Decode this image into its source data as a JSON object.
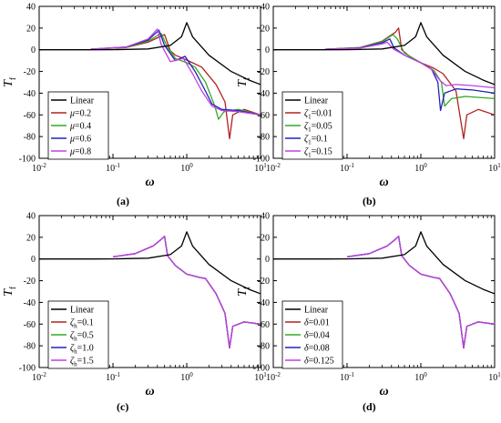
{
  "figure": {
    "panel_captions": [
      "(a)",
      "(b)",
      "(c)",
      "(d)"
    ]
  },
  "colors": {
    "linear": "#000000",
    "red": "#b22222",
    "green": "#33aa22",
    "blue": "#2020c0",
    "magenta": "#c040e0"
  },
  "chart_data": [
    {
      "type": "line",
      "panel": "(a)",
      "xlabel": "ω",
      "ylabel": "T_f",
      "xscale": "log",
      "xlim": [
        0.01,
        10
      ],
      "ylim": [
        -100,
        40
      ],
      "xticks": [
        "10^-2",
        "10^-1",
        "10^0",
        "10^1"
      ],
      "yticks": [
        40,
        20,
        0,
        -20,
        -40,
        -60,
        -80,
        -100
      ],
      "legend": "left",
      "series": [
        {
          "name": "Linear",
          "color": "linear",
          "x": [
            0.01,
            0.05,
            0.1,
            0.3,
            0.6,
            0.85,
            1.0,
            1.2,
            2,
            4,
            7,
            10
          ],
          "y": [
            0,
            0.02,
            0.1,
            0.8,
            4,
            12,
            25,
            12,
            -5,
            -20,
            -28,
            -32
          ]
        },
        {
          "name": "μ=0.2",
          "color": "red",
          "x": [
            0.05,
            0.15,
            0.3,
            0.5,
            0.6,
            0.7,
            0.9,
            1.2,
            1.6,
            2.5,
            3.3,
            3.8,
            4.2,
            6,
            10
          ],
          "y": [
            0.5,
            2,
            7,
            14,
            -1,
            -5,
            -8,
            -12,
            -16,
            -32,
            -48,
            -82,
            -60,
            -55,
            -60
          ]
        },
        {
          "name": "μ=0.4",
          "color": "green",
          "x": [
            0.05,
            0.15,
            0.3,
            0.45,
            0.55,
            0.7,
            1.0,
            1.3,
            1.8,
            2.4,
            2.7,
            3.2,
            5,
            10
          ],
          "y": [
            0.5,
            2.2,
            8,
            15,
            2,
            -8,
            -12,
            -16,
            -30,
            -52,
            -64,
            -57,
            -55,
            -60
          ]
        },
        {
          "name": "μ=0.6",
          "color": "blue",
          "x": [
            0.05,
            0.15,
            0.3,
            0.42,
            0.5,
            0.7,
            0.95,
            1.3,
            1.7,
            2.2,
            3,
            5,
            10
          ],
          "y": [
            0.6,
            2.5,
            9,
            18,
            4,
            -10,
            -6,
            -20,
            -35,
            -50,
            -55,
            -56,
            -60
          ]
        },
        {
          "name": "μ=0.8",
          "color": "magenta",
          "x": [
            0.05,
            0.15,
            0.3,
            0.4,
            0.45,
            0.6,
            0.9,
            1.2,
            1.6,
            2.2,
            3,
            5,
            10
          ],
          "y": [
            0.6,
            2.5,
            10,
            19,
            5,
            -11,
            -8,
            -22,
            -38,
            -52,
            -56,
            -57,
            -60
          ]
        }
      ]
    },
    {
      "type": "line",
      "panel": "(b)",
      "xlabel": "ω",
      "ylabel": "T_f",
      "xscale": "log",
      "xlim": [
        0.01,
        10
      ],
      "ylim": [
        -100,
        40
      ],
      "xticks": [
        "10^-2",
        "10^-1",
        "10^0",
        "10^1"
      ],
      "yticks": [
        40,
        20,
        0,
        -20,
        -40,
        -60,
        -80,
        -100
      ],
      "legend": "left",
      "series": [
        {
          "name": "Linear",
          "color": "linear",
          "x": [
            0.01,
            0.05,
            0.1,
            0.3,
            0.6,
            0.85,
            1.0,
            1.2,
            2,
            4,
            7,
            10
          ],
          "y": [
            0,
            0.02,
            0.1,
            0.8,
            4,
            12,
            25,
            12,
            -5,
            -20,
            -28,
            -32
          ]
        },
        {
          "name": "ζ1=0.01",
          "color": "red",
          "x": [
            0.05,
            0.15,
            0.3,
            0.45,
            0.5,
            0.55,
            0.7,
            1.0,
            1.5,
            2,
            3,
            3.8,
            4.2,
            6,
            10
          ],
          "y": [
            0.5,
            2,
            8,
            16,
            20,
            0,
            -6,
            -12,
            -17,
            -22,
            -38,
            -82,
            -60,
            -55,
            -60
          ]
        },
        {
          "name": "ζ1=0.05",
          "color": "green",
          "x": [
            0.05,
            0.15,
            0.3,
            0.42,
            0.48,
            0.6,
            1.0,
            1.5,
            1.9,
            2.1,
            2.6,
            4,
            10
          ],
          "y": [
            0.5,
            2,
            7.5,
            14,
            10,
            -3,
            -12,
            -19,
            -30,
            -52,
            -45,
            -43,
            -45
          ]
        },
        {
          "name": "ζ1=0.1",
          "color": "blue",
          "x": [
            0.05,
            0.15,
            0.3,
            0.38,
            0.43,
            0.6,
            1.0,
            1.4,
            1.7,
            1.85,
            2.1,
            3,
            5,
            10
          ],
          "y": [
            0.5,
            1.8,
            6.5,
            10,
            2,
            -5,
            -12,
            -18,
            -30,
            -56,
            -40,
            -36,
            -37,
            -40
          ]
        },
        {
          "name": "ζ1=0.15",
          "color": "magenta",
          "x": [
            0.05,
            0.15,
            0.3,
            0.35,
            0.42,
            0.6,
            1.0,
            1.4,
            1.8,
            2.2,
            3,
            5,
            10
          ],
          "y": [
            0.5,
            1.5,
            5.5,
            7,
            1,
            -5,
            -12,
            -18,
            -28,
            -33,
            -32,
            -33,
            -35
          ]
        }
      ]
    },
    {
      "type": "line",
      "panel": "(c)",
      "xlabel": "ω",
      "ylabel": "T_f",
      "xscale": "log",
      "xlim": [
        0.01,
        10
      ],
      "ylim": [
        -100,
        40
      ],
      "xticks": [
        "10^-2",
        "10^-1",
        "10^0",
        "10^1"
      ],
      "yticks": [
        40,
        20,
        0,
        -20,
        -40,
        -60,
        -80,
        -100
      ],
      "legend": "left",
      "series": [
        {
          "name": "Linear",
          "color": "linear",
          "x": [
            0.01,
            0.05,
            0.1,
            0.3,
            0.6,
            0.85,
            1.0,
            1.2,
            2,
            4,
            7,
            10
          ],
          "y": [
            0,
            0.02,
            0.1,
            0.8,
            4,
            12,
            25,
            12,
            -5,
            -20,
            -28,
            -32
          ]
        },
        {
          "name": "ζh=0.1",
          "color": "red",
          "x": [
            0.1,
            0.2,
            0.35,
            0.45,
            0.5,
            0.55,
            0.7,
            1.0,
            1.5,
            1.8,
            2.5,
            3.3,
            3.8,
            4.2,
            6,
            10
          ],
          "y": [
            2,
            5,
            12,
            18,
            21,
            3,
            -6,
            -14,
            -17,
            -18,
            -32,
            -50,
            -82,
            -62,
            -58,
            -60
          ]
        },
        {
          "name": "ζh=0.5",
          "color": "green",
          "x": [
            0.1,
            0.2,
            0.35,
            0.45,
            0.5,
            0.55,
            0.7,
            1.0,
            1.5,
            1.8,
            2.5,
            3.3,
            3.8,
            4.2,
            6,
            10
          ],
          "y": [
            2,
            5,
            12,
            18,
            21,
            3,
            -6,
            -14,
            -17,
            -18,
            -32,
            -50,
            -82,
            -62,
            -58,
            -60
          ]
        },
        {
          "name": "ζh=1.0",
          "color": "blue",
          "x": [
            0.1,
            0.2,
            0.35,
            0.45,
            0.5,
            0.55,
            0.7,
            1.0,
            1.5,
            1.8,
            2.5,
            3.3,
            3.8,
            4.2,
            6,
            10
          ],
          "y": [
            2,
            5,
            12,
            18,
            21,
            3,
            -6,
            -14,
            -17,
            -18,
            -32,
            -50,
            -82,
            -62,
            -58,
            -60
          ]
        },
        {
          "name": "ζh=1.5",
          "color": "magenta",
          "x": [
            0.1,
            0.2,
            0.35,
            0.45,
            0.5,
            0.55,
            0.7,
            1.0,
            1.5,
            1.8,
            2.5,
            3.3,
            3.8,
            4.2,
            6,
            10
          ],
          "y": [
            2,
            5,
            12,
            18,
            21,
            3,
            -6,
            -14,
            -17,
            -18,
            -32,
            -50,
            -82,
            -62,
            -58,
            -60
          ]
        }
      ]
    },
    {
      "type": "line",
      "panel": "(d)",
      "xlabel": "ω",
      "ylabel": "T_f",
      "xscale": "log",
      "xlim": [
        0.01,
        10
      ],
      "ylim": [
        -100,
        40
      ],
      "xticks": [
        "10^-2",
        "10^-1",
        "10^0",
        "10^1"
      ],
      "yticks": [
        40,
        20,
        0,
        -20,
        -40,
        -60,
        -80,
        -100
      ],
      "legend": "left",
      "series": [
        {
          "name": "Linear",
          "color": "linear",
          "x": [
            0.01,
            0.05,
            0.1,
            0.3,
            0.6,
            0.85,
            1.0,
            1.2,
            2,
            4,
            7,
            10
          ],
          "y": [
            0,
            0.02,
            0.1,
            0.8,
            4,
            12,
            25,
            12,
            -5,
            -20,
            -28,
            -32
          ]
        },
        {
          "name": "δ=0.01",
          "color": "red",
          "x": [
            0.1,
            0.2,
            0.35,
            0.45,
            0.5,
            0.55,
            0.7,
            1.0,
            1.5,
            1.8,
            2.5,
            3.3,
            3.8,
            4.2,
            6,
            10
          ],
          "y": [
            2,
            5,
            12,
            18,
            21,
            3,
            -6,
            -14,
            -17,
            -18,
            -32,
            -50,
            -82,
            -62,
            -58,
            -60
          ]
        },
        {
          "name": "δ=0.04",
          "color": "green",
          "x": [
            0.1,
            0.2,
            0.35,
            0.45,
            0.5,
            0.55,
            0.7,
            1.0,
            1.5,
            1.8,
            2.5,
            3.3,
            3.8,
            4.2,
            6,
            10
          ],
          "y": [
            2,
            5,
            12,
            18,
            21,
            3,
            -6,
            -14,
            -17,
            -18,
            -32,
            -50,
            -82,
            -62,
            -58,
            -60
          ]
        },
        {
          "name": "δ=0.08",
          "color": "blue",
          "x": [
            0.1,
            0.2,
            0.35,
            0.45,
            0.5,
            0.55,
            0.7,
            1.0,
            1.5,
            1.8,
            2.5,
            3.3,
            3.8,
            4.2,
            6,
            10
          ],
          "y": [
            2,
            5,
            12,
            18,
            21,
            3,
            -6,
            -14,
            -17,
            -18,
            -32,
            -50,
            -82,
            -62,
            -58,
            -60
          ]
        },
        {
          "name": "δ=0.125",
          "color": "magenta",
          "x": [
            0.1,
            0.2,
            0.35,
            0.45,
            0.5,
            0.55,
            0.7,
            1.0,
            1.5,
            1.8,
            2.5,
            3.3,
            3.8,
            4.2,
            6,
            10
          ],
          "y": [
            2,
            5,
            12,
            18,
            21,
            3,
            -6,
            -14,
            -17,
            -18,
            -32,
            -50,
            -82,
            -62,
            -58,
            -60
          ]
        }
      ]
    }
  ]
}
